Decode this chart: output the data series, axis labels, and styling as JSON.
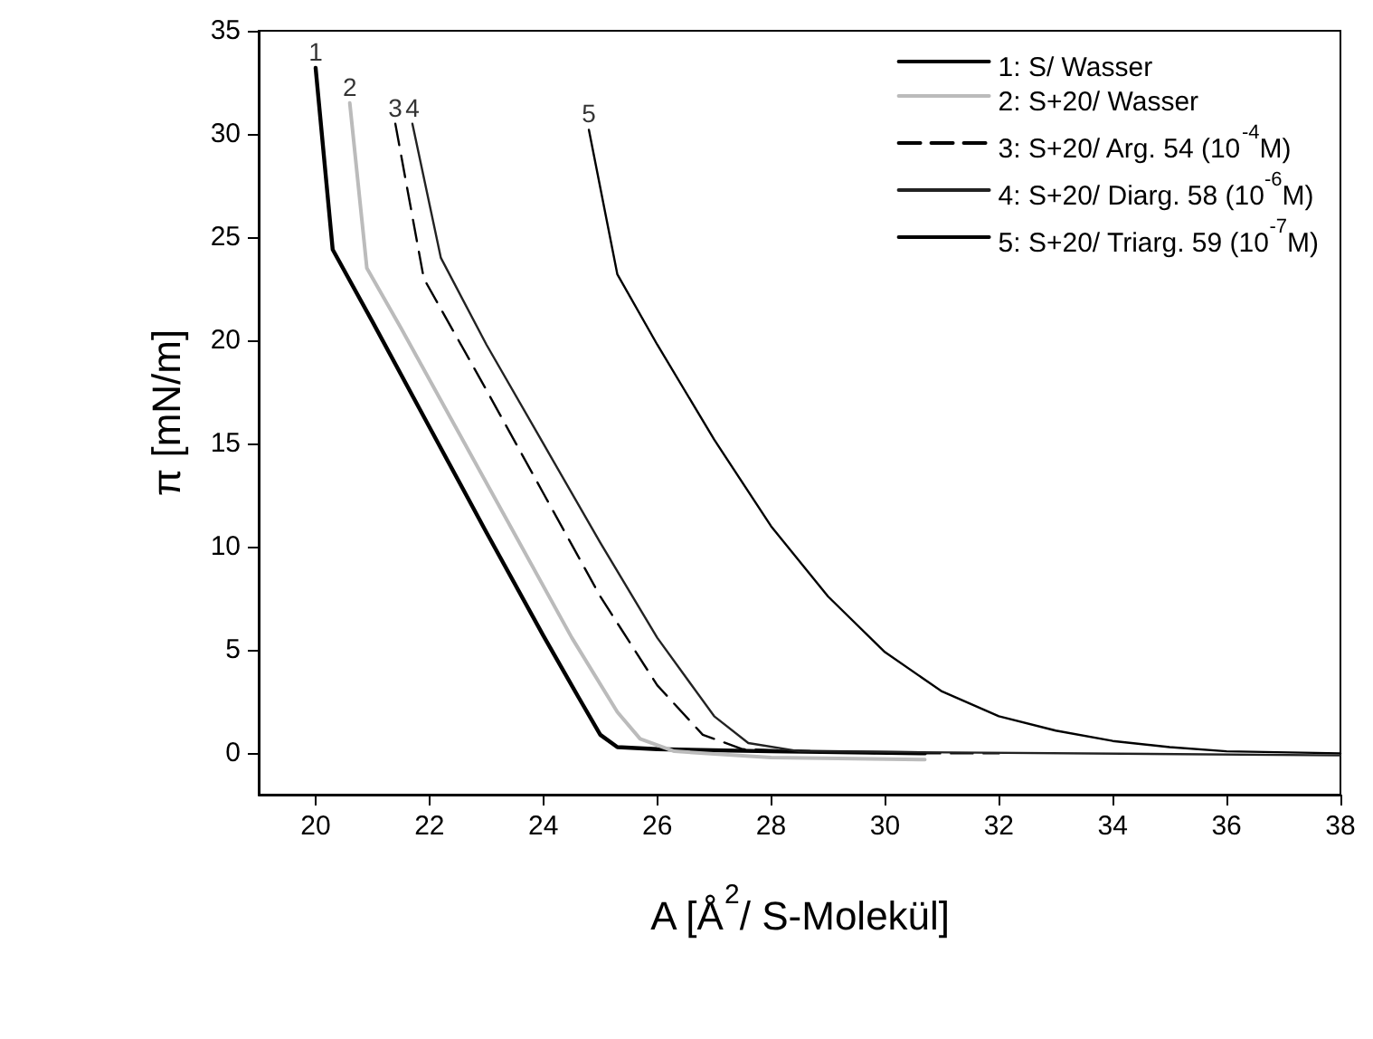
{
  "chart_data": {
    "type": "line",
    "xlabel": "A [Å$^{2}$/ S-Molekül]",
    "ylabel": "π [mN/m]",
    "xlim": [
      19,
      38
    ],
    "xticks": [
      20,
      22,
      24,
      26,
      28,
      30,
      32,
      34,
      36,
      38
    ],
    "ylim": [
      -2,
      35
    ],
    "yticks": [
      0,
      5,
      10,
      15,
      20,
      25,
      30,
      35
    ],
    "grid": false,
    "legend": "top right",
    "marker": "none",
    "annotations": [
      {
        "text": "1",
        "x": 20.0,
        "y": 33.2
      },
      {
        "text": "2",
        "x": 20.6,
        "y": 31.5
      },
      {
        "text": "3",
        "x": 21.4,
        "y": 30.5
      },
      {
        "text": "4",
        "x": 21.7,
        "y": 30.5
      },
      {
        "text": "5",
        "x": 24.8,
        "y": 30.2
      }
    ],
    "series": [
      {
        "name": "1: S/ Wasser",
        "color": "#000000",
        "line_style": "solid",
        "x": [
          20.0,
          20.3,
          21,
          22,
          23,
          24,
          24.6,
          25,
          25.3,
          26,
          28,
          30.7
        ],
        "values": [
          33.2,
          24.4,
          20.9,
          15.8,
          10.7,
          5.7,
          2.8,
          0.9,
          0.3,
          0.2,
          0.1,
          0.0
        ]
      },
      {
        "name": "2: S+20/ Wasser",
        "color": "#bbbbbb",
        "line_style": "solid",
        "x": [
          20.6,
          20.9,
          21.5,
          22.5,
          23.5,
          24.5,
          25.3,
          25.7,
          26.3,
          28,
          30.7
        ],
        "values": [
          31.5,
          23.5,
          20.6,
          15.6,
          10.6,
          5.6,
          2.0,
          0.7,
          0.1,
          -0.2,
          -0.3
        ]
      },
      {
        "name": "3: S+20/ Arg. 54 (10$^{-4}$M)",
        "color": "#000000",
        "line_style": "dashed",
        "x": [
          21.4,
          21.9,
          23,
          24,
          25,
          26,
          26.8,
          27.5,
          30,
          32
        ],
        "values": [
          30.5,
          23.0,
          17.6,
          12.6,
          7.6,
          3.3,
          0.9,
          0.2,
          0,
          0
        ]
      },
      {
        "name": "4: S+20/ Diarg. 58 (10$^{-6}$M)",
        "color": "#222222",
        "line_style": "solid",
        "x": [
          21.7,
          22.2,
          23,
          24,
          25,
          26,
          27,
          27.6,
          28.5,
          38
        ],
        "values": [
          30.5,
          24.0,
          19.8,
          15.0,
          10.2,
          5.6,
          1.8,
          0.5,
          0.1,
          -0.1
        ]
      },
      {
        "name": "5: S+20/ Triarg. 59 (10$^{-7}$M)",
        "color": "#000000",
        "line_style": "solid",
        "x": [
          24.8,
          25.3,
          26,
          27,
          28,
          29,
          30,
          31,
          32,
          33,
          34,
          35,
          36,
          38
        ],
        "values": [
          30.2,
          23.2,
          19.8,
          15.2,
          11.0,
          7.6,
          4.9,
          3.0,
          1.8,
          1.1,
          0.6,
          0.3,
          0.1,
          0
        ]
      }
    ]
  }
}
